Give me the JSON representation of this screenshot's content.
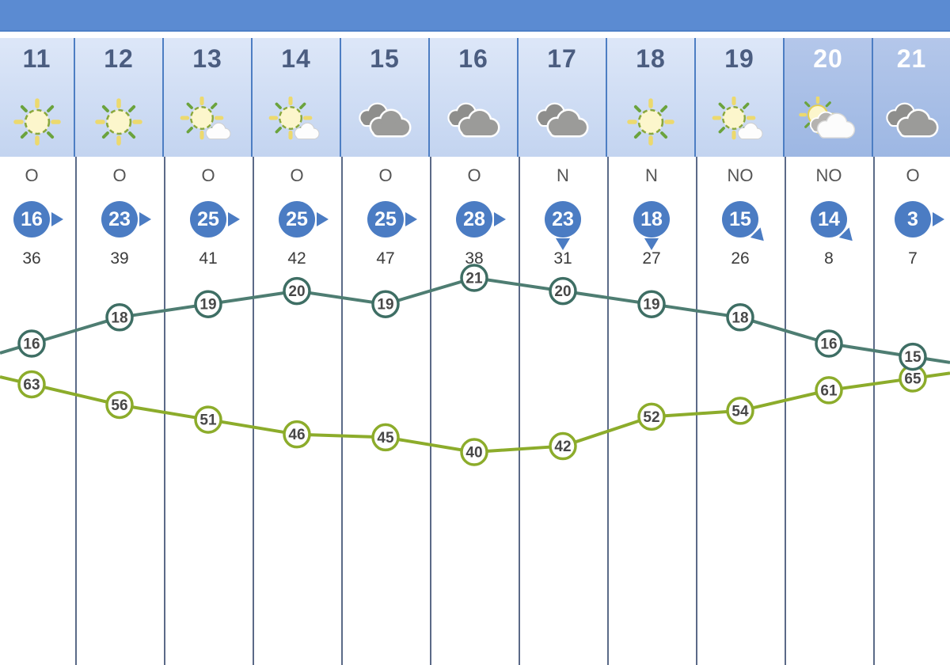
{
  "colors": {
    "topbar": "#5b8bd2",
    "header_day_bg": "#c9d8f2",
    "header_night_bg": "#a8bfe7",
    "wind_badge": "#4b7cc3",
    "temperature_line": "#4e7d72",
    "humidity_line": "#8cac2b",
    "separator": "#5b6a87"
  },
  "columns": [
    {
      "hour": "11",
      "icon": "sun",
      "night": false,
      "wind_dir": "O",
      "wind_speed": "16",
      "wind_arrow": "right",
      "gust": "36",
      "temp": 16,
      "humidity": 63
    },
    {
      "hour": "12",
      "icon": "sun",
      "night": false,
      "wind_dir": "O",
      "wind_speed": "23",
      "wind_arrow": "right",
      "gust": "39",
      "temp": 18,
      "humidity": 56
    },
    {
      "hour": "13",
      "icon": "sun-small-cloud",
      "night": false,
      "wind_dir": "O",
      "wind_speed": "25",
      "wind_arrow": "right",
      "gust": "41",
      "temp": 19,
      "humidity": 51
    },
    {
      "hour": "14",
      "icon": "sun-small-cloud",
      "night": false,
      "wind_dir": "O",
      "wind_speed": "25",
      "wind_arrow": "right",
      "gust": "42",
      "temp": 20,
      "humidity": 46
    },
    {
      "hour": "15",
      "icon": "clouds",
      "night": false,
      "wind_dir": "O",
      "wind_speed": "25",
      "wind_arrow": "right",
      "gust": "47",
      "temp": 19,
      "humidity": 45
    },
    {
      "hour": "16",
      "icon": "clouds",
      "night": false,
      "wind_dir": "O",
      "wind_speed": "28",
      "wind_arrow": "right",
      "gust": "38",
      "temp": 21,
      "humidity": 40
    },
    {
      "hour": "17",
      "icon": "clouds",
      "night": false,
      "wind_dir": "N",
      "wind_speed": "23",
      "wind_arrow": "down",
      "gust": "31",
      "temp": 20,
      "humidity": 42
    },
    {
      "hour": "18",
      "icon": "sun",
      "night": false,
      "wind_dir": "N",
      "wind_speed": "18",
      "wind_arrow": "down",
      "gust": "27",
      "temp": 19,
      "humidity": 52
    },
    {
      "hour": "19",
      "icon": "sun-small-cloud",
      "night": false,
      "wind_dir": "NO",
      "wind_speed": "15",
      "wind_arrow": "down-right",
      "gust": "26",
      "temp": 18,
      "humidity": 54
    },
    {
      "hour": "20",
      "icon": "sun-behind-cloud",
      "night": true,
      "wind_dir": "NO",
      "wind_speed": "14",
      "wind_arrow": "down-right",
      "gust": "8",
      "temp": 16,
      "humidity": 61
    },
    {
      "hour": "21",
      "icon": "clouds",
      "night": true,
      "wind_dir": "O",
      "wind_speed": "3",
      "wind_arrow": "right",
      "gust": "7",
      "temp": 15,
      "humidity": 65
    }
  ],
  "chart_data": {
    "type": "line",
    "categories": [
      11,
      12,
      13,
      14,
      15,
      16,
      17,
      18,
      19,
      20,
      21
    ],
    "series": [
      {
        "name": "temperature",
        "color": "#4e7d72",
        "values": [
          16,
          18,
          19,
          20,
          19,
          21,
          20,
          19,
          18,
          16,
          15
        ]
      },
      {
        "name": "humidity",
        "color": "#8cac2b",
        "values": [
          63,
          56,
          51,
          46,
          45,
          40,
          42,
          52,
          54,
          61,
          65
        ]
      }
    ],
    "annotations": "each point labelled with its value inside a circular marker",
    "legend": "none",
    "grid": "vertical column separators only"
  }
}
